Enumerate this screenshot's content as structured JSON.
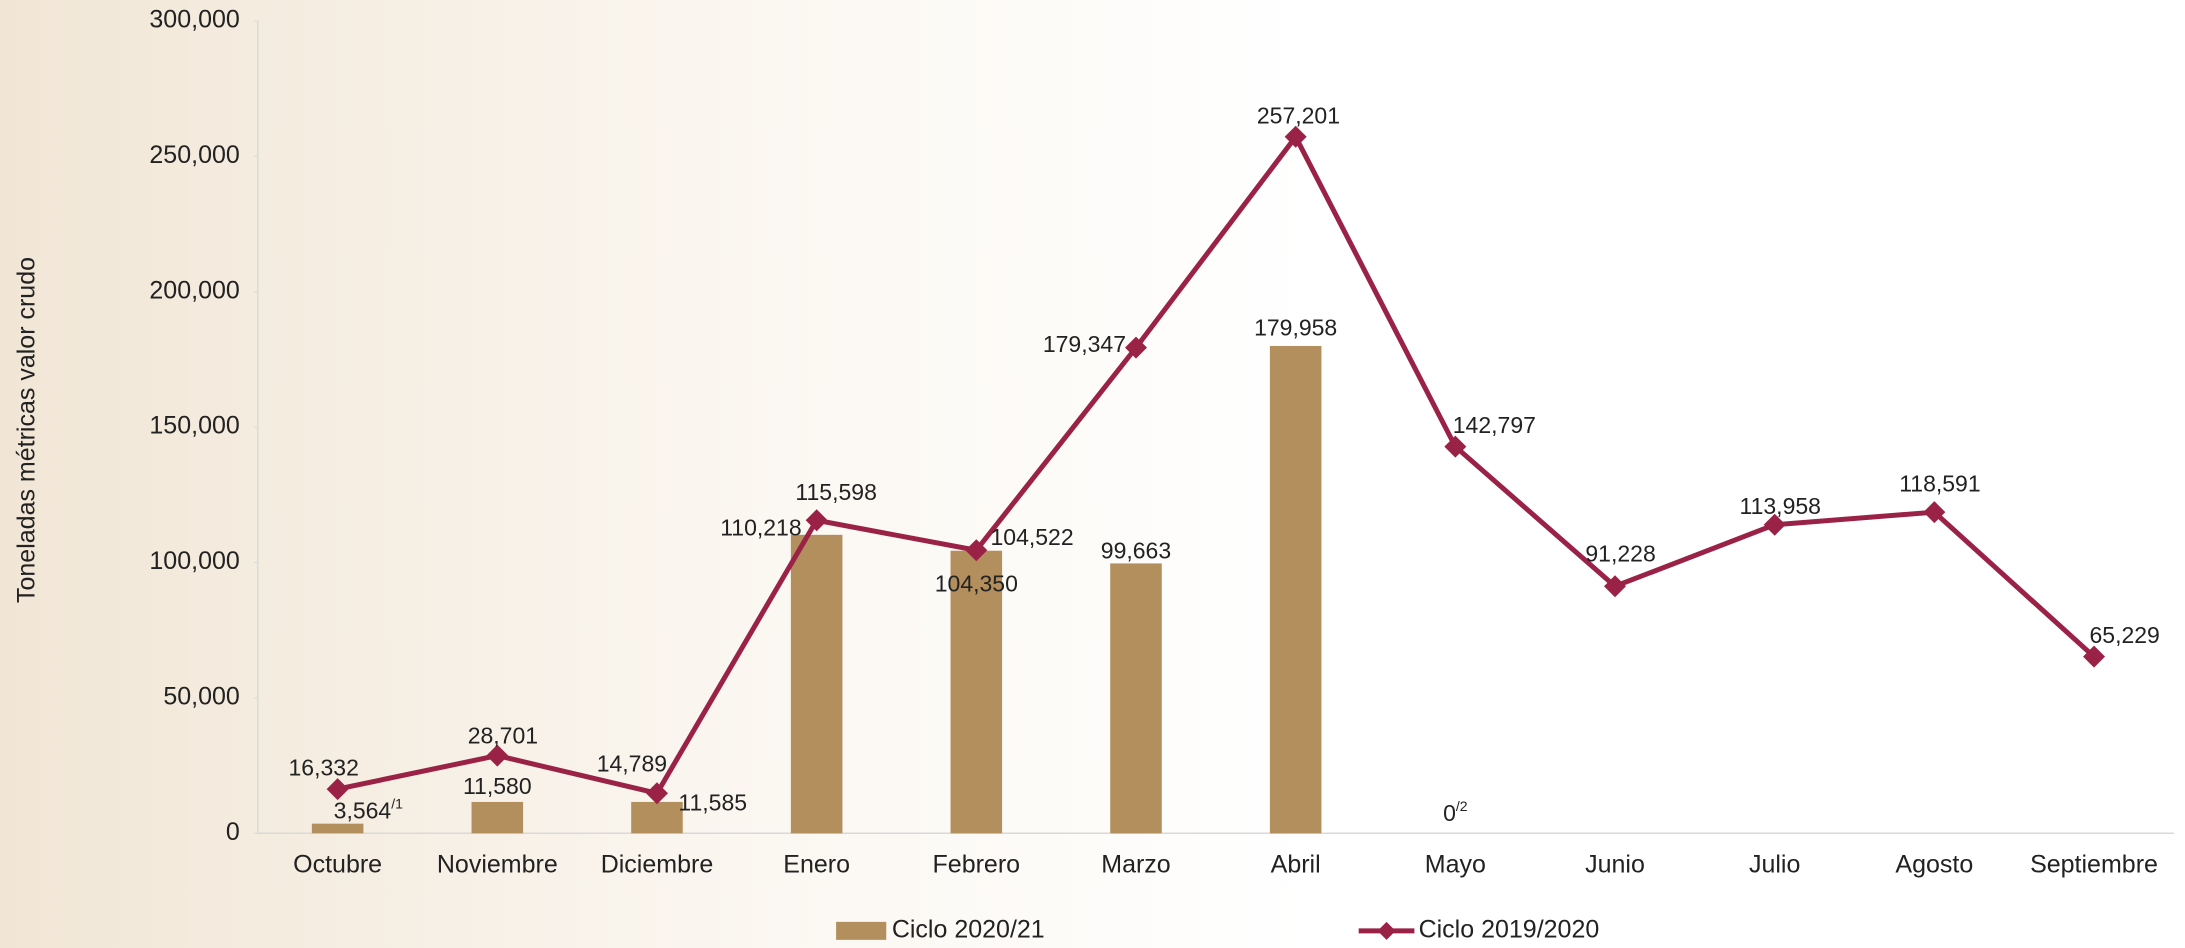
{
  "chart_data": {
    "type": "bar-line",
    "y_label": "Toneladas métricas valor crudo",
    "categories": [
      "Octubre",
      "Noviembre",
      "Diciembre",
      "Enero",
      "Febrero",
      "Marzo",
      "Abril",
      "Mayo",
      "Junio",
      "Julio",
      "Agosto",
      "Septiembre"
    ],
    "series": [
      {
        "name": "Ciclo 2020/21",
        "type": "bar",
        "color": "#b38f5e",
        "values": [
          3564,
          11580,
          11585,
          110218,
          104350,
          99663,
          179958,
          0,
          null,
          null,
          null,
          null
        ],
        "value_labels": [
          "3,564",
          "11,580",
          "11,585",
          "110,218",
          "104,350",
          "99,663",
          "179,958",
          "0",
          null,
          null,
          null,
          null
        ],
        "value_notes": [
          "/1",
          null,
          null,
          null,
          null,
          null,
          null,
          "/2",
          null,
          null,
          null,
          null
        ]
      },
      {
        "name": "Ciclo 2019/2020",
        "type": "line",
        "color": "#9b2247",
        "values": [
          16332,
          28701,
          14789,
          115598,
          104522,
          179347,
          257201,
          142797,
          91228,
          113958,
          118591,
          65229
        ],
        "value_labels": [
          "16,332",
          "28,701",
          "14,789",
          "115,598",
          "104,522",
          "179,347",
          "257,201",
          "142,797",
          "91,228",
          "113,958",
          "118,591",
          "65,229"
        ]
      }
    ],
    "ylim": [
      0,
      300000
    ],
    "yticks": [
      0,
      {
        "value": 50000,
        "label": "50,000"
      },
      {
        "value": 100000,
        "label": "100,000"
      },
      {
        "value": 150000,
        "label": "150,000"
      },
      {
        "value": 200000,
        "label": "200,000"
      },
      {
        "value": 250000,
        "label": "250,000"
      },
      {
        "value": 300000,
        "label": "300,000"
      }
    ],
    "legend": "bottom"
  }
}
